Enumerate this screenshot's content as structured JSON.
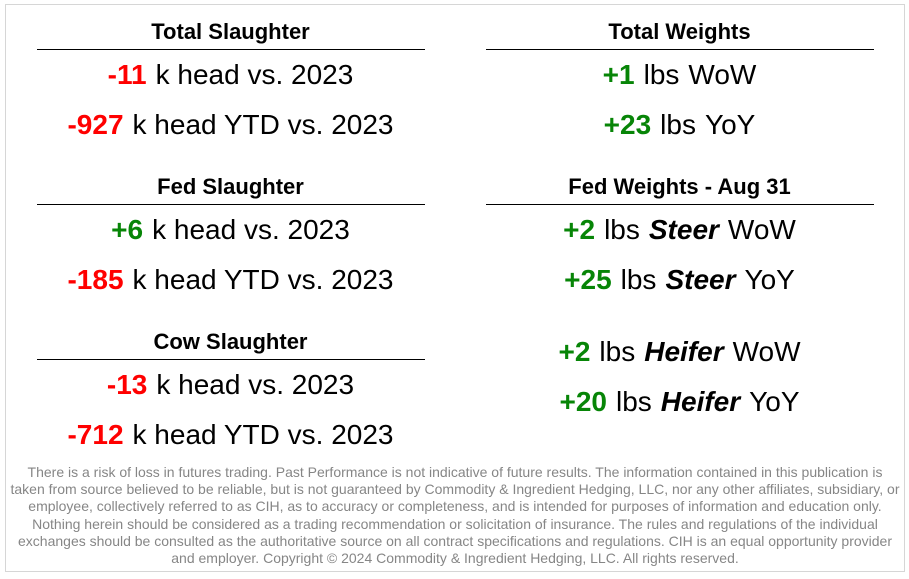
{
  "colors": {
    "negative": "#ff0000",
    "positive": "#078507",
    "heading": "#000000",
    "text": "#000000",
    "muted": "#868686",
    "rule": "#000000",
    "frame_border": "#d6d6d6",
    "background": "#ffffff"
  },
  "left": {
    "sections": [
      {
        "title": "Total Slaughter",
        "rows": [
          {
            "value": "-11",
            "sentiment": "negative",
            "unit": "k head vs. 2023",
            "em": "",
            "tail": ""
          },
          {
            "value": "-927",
            "sentiment": "negative",
            "unit": "k head YTD vs. 2023",
            "em": "",
            "tail": ""
          }
        ]
      },
      {
        "title": "Fed Slaughter",
        "rows": [
          {
            "value": "+6",
            "sentiment": "positive",
            "unit": "k head vs. 2023",
            "em": "",
            "tail": ""
          },
          {
            "value": "-185",
            "sentiment": "negative",
            "unit": "k head YTD vs. 2023",
            "em": "",
            "tail": ""
          }
        ]
      },
      {
        "title": "Cow Slaughter",
        "rows": [
          {
            "value": "-13",
            "sentiment": "negative",
            "unit": "k head vs. 2023",
            "em": "",
            "tail": ""
          },
          {
            "value": "-712",
            "sentiment": "negative",
            "unit": "k head YTD vs. 2023",
            "em": "",
            "tail": ""
          }
        ]
      }
    ]
  },
  "right": {
    "sections": [
      {
        "title": "Total Weights",
        "rows": [
          {
            "value": "+1",
            "sentiment": "positive",
            "unit": "lbs",
            "em": "",
            "tail": "WoW"
          },
          {
            "value": "+23",
            "sentiment": "positive",
            "unit": "lbs",
            "em": "",
            "tail": "YoY"
          }
        ]
      },
      {
        "title": "Fed Weights - Aug 31",
        "rows": [
          {
            "value": "+2",
            "sentiment": "positive",
            "unit": "lbs",
            "em": "Steer",
            "tail": "WoW"
          },
          {
            "value": "+25",
            "sentiment": "positive",
            "unit": "lbs",
            "em": "Steer",
            "tail": "YoY"
          }
        ],
        "extra_rows": [
          {
            "value": "+2",
            "sentiment": "positive",
            "unit": "lbs",
            "em": "Heifer",
            "tail": "WoW"
          },
          {
            "value": "+20",
            "sentiment": "positive",
            "unit": "lbs",
            "em": "Heifer",
            "tail": "YoY"
          }
        ]
      }
    ]
  },
  "disclaimer": "There is a risk of loss in futures trading. Past Performance is not indicative of future results. The information contained in this publication is taken from source believed to be reliable, but is not guaranteed by Commodity & Ingredient Hedging, LLC, nor any other affiliates, subsidiary, or employee, collectively referred to as CIH, as to accuracy or completeness, and is intended for purposes of information and education only. Nothing herein should be considered as a trading recommendation or solicitation of insurance. The rules and regulations of the individual exchanges should be consulted as the authoritative source on all contract specifications and regulations. CIH is an equal opportunity provider and employer. Copyright © 2024 Commodity & Ingredient Hedging, LLC. All rights reserved."
}
